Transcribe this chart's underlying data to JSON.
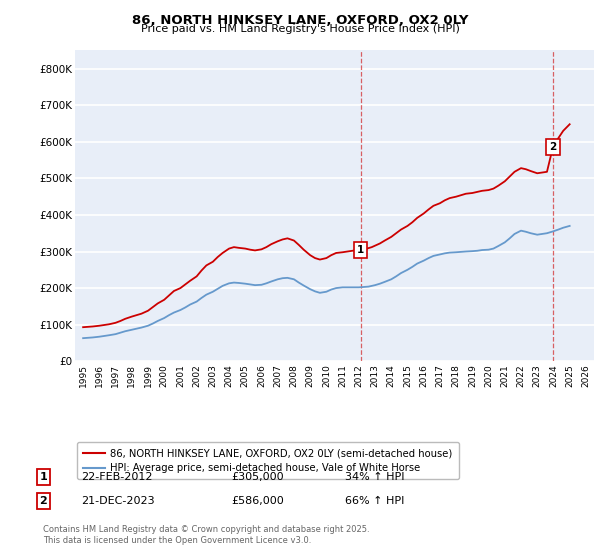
{
  "title": "86, NORTH HINKSEY LANE, OXFORD, OX2 0LY",
  "subtitle": "Price paid vs. HM Land Registry's House Price Index (HPI)",
  "legend_line1": "86, NORTH HINKSEY LANE, OXFORD, OX2 0LY (semi-detached house)",
  "legend_line2": "HPI: Average price, semi-detached house, Vale of White Horse",
  "marker1_date": "22-FEB-2012",
  "marker1_price": "£305,000",
  "marker1_hpi": "34% ↑ HPI",
  "marker2_date": "21-DEC-2023",
  "marker2_price": "£586,000",
  "marker2_hpi": "66% ↑ HPI",
  "footer": "Contains HM Land Registry data © Crown copyright and database right 2025.\nThis data is licensed under the Open Government Licence v3.0.",
  "ylabel_ticks": [
    0,
    100000,
    200000,
    300000,
    400000,
    500000,
    600000,
    700000,
    800000
  ],
  "ylabel_labels": [
    "£0",
    "£100K",
    "£200K",
    "£300K",
    "£400K",
    "£500K",
    "£600K",
    "£700K",
    "£800K"
  ],
  "xlim": [
    1994.5,
    2026.5
  ],
  "ylim": [
    0,
    850000
  ],
  "red_color": "#cc0000",
  "blue_color": "#6699cc",
  "bg_color": "#e8eef8",
  "grid_color": "#ffffff",
  "marker1_x": 2012.13,
  "marker2_x": 2023.97,
  "red_line_data": {
    "x": [
      1995.0,
      1995.3,
      1995.6,
      1996.0,
      1996.3,
      1996.6,
      1997.0,
      1997.3,
      1997.6,
      1998.0,
      1998.3,
      1998.6,
      1999.0,
      1999.3,
      1999.6,
      2000.0,
      2000.3,
      2000.6,
      2001.0,
      2001.3,
      2001.6,
      2002.0,
      2002.3,
      2002.6,
      2003.0,
      2003.3,
      2003.6,
      2004.0,
      2004.3,
      2004.6,
      2005.0,
      2005.3,
      2005.6,
      2006.0,
      2006.3,
      2006.6,
      2007.0,
      2007.3,
      2007.6,
      2008.0,
      2008.3,
      2008.6,
      2009.0,
      2009.3,
      2009.6,
      2010.0,
      2010.3,
      2010.6,
      2011.0,
      2011.3,
      2011.6,
      2012.0,
      2012.13,
      2012.5,
      2012.8,
      2013.0,
      2013.3,
      2013.6,
      2014.0,
      2014.3,
      2014.6,
      2015.0,
      2015.3,
      2015.6,
      2016.0,
      2016.3,
      2016.6,
      2017.0,
      2017.3,
      2017.6,
      2018.0,
      2018.3,
      2018.6,
      2019.0,
      2019.3,
      2019.6,
      2020.0,
      2020.3,
      2020.6,
      2021.0,
      2021.3,
      2021.6,
      2022.0,
      2022.3,
      2022.6,
      2023.0,
      2023.3,
      2023.6,
      2023.97,
      2024.3,
      2024.6,
      2025.0
    ],
    "y": [
      93000,
      94000,
      95000,
      97000,
      99000,
      101000,
      105000,
      110000,
      116000,
      122000,
      126000,
      130000,
      138000,
      148000,
      158000,
      168000,
      180000,
      192000,
      200000,
      210000,
      220000,
      232000,
      248000,
      262000,
      272000,
      285000,
      296000,
      308000,
      312000,
      310000,
      308000,
      305000,
      303000,
      306000,
      312000,
      320000,
      328000,
      333000,
      336000,
      330000,
      318000,
      305000,
      290000,
      282000,
      278000,
      282000,
      290000,
      296000,
      298000,
      300000,
      302000,
      304000,
      305000,
      308000,
      312000,
      316000,
      322000,
      330000,
      340000,
      350000,
      360000,
      370000,
      380000,
      392000,
      404000,
      415000,
      425000,
      432000,
      440000,
      446000,
      450000,
      454000,
      458000,
      460000,
      463000,
      466000,
      468000,
      472000,
      480000,
      492000,
      505000,
      518000,
      528000,
      525000,
      520000,
      514000,
      516000,
      518000,
      586000,
      610000,
      630000,
      648000
    ]
  },
  "blue_line_data": {
    "x": [
      1995.0,
      1995.3,
      1995.6,
      1996.0,
      1996.3,
      1996.6,
      1997.0,
      1997.3,
      1997.6,
      1998.0,
      1998.3,
      1998.6,
      1999.0,
      1999.3,
      1999.6,
      2000.0,
      2000.3,
      2000.6,
      2001.0,
      2001.3,
      2001.6,
      2002.0,
      2002.3,
      2002.6,
      2003.0,
      2003.3,
      2003.6,
      2004.0,
      2004.3,
      2004.6,
      2005.0,
      2005.3,
      2005.6,
      2006.0,
      2006.3,
      2006.6,
      2007.0,
      2007.3,
      2007.6,
      2008.0,
      2008.3,
      2008.6,
      2009.0,
      2009.3,
      2009.6,
      2010.0,
      2010.3,
      2010.6,
      2011.0,
      2011.3,
      2011.6,
      2012.0,
      2012.3,
      2012.6,
      2012.8,
      2013.0,
      2013.3,
      2013.6,
      2014.0,
      2014.3,
      2014.6,
      2015.0,
      2015.3,
      2015.6,
      2016.0,
      2016.3,
      2016.6,
      2017.0,
      2017.3,
      2017.6,
      2018.0,
      2018.3,
      2018.6,
      2019.0,
      2019.3,
      2019.6,
      2020.0,
      2020.3,
      2020.6,
      2021.0,
      2021.3,
      2021.6,
      2022.0,
      2022.3,
      2022.6,
      2023.0,
      2023.3,
      2023.6,
      2023.97,
      2024.3,
      2024.6,
      2025.0
    ],
    "y": [
      63000,
      64000,
      65000,
      67000,
      69000,
      71000,
      74000,
      78000,
      82000,
      86000,
      89000,
      92000,
      97000,
      103000,
      110000,
      118000,
      126000,
      133000,
      140000,
      147000,
      155000,
      163000,
      173000,
      182000,
      190000,
      198000,
      206000,
      213000,
      215000,
      214000,
      212000,
      210000,
      208000,
      209000,
      213000,
      218000,
      224000,
      227000,
      228000,
      224000,
      215000,
      207000,
      197000,
      191000,
      187000,
      190000,
      196000,
      200000,
      202000,
      202000,
      202000,
      202000,
      203000,
      204000,
      206000,
      208000,
      212000,
      217000,
      224000,
      232000,
      241000,
      250000,
      258000,
      267000,
      275000,
      282000,
      288000,
      292000,
      295000,
      297000,
      298000,
      299000,
      300000,
      301000,
      302000,
      304000,
      305000,
      308000,
      315000,
      325000,
      336000,
      348000,
      357000,
      354000,
      350000,
      346000,
      348000,
      350000,
      355000,
      360000,
      365000,
      370000
    ]
  }
}
